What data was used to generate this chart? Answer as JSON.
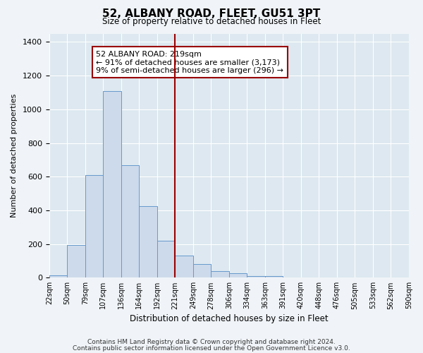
{
  "title": "52, ALBANY ROAD, FLEET, GU51 3PT",
  "subtitle": "Size of property relative to detached houses in Fleet",
  "xlabel": "Distribution of detached houses by size in Fleet",
  "ylabel": "Number of detached properties",
  "bar_color": "#cddaeb",
  "bar_edge_color": "#6699cc",
  "background_color": "#dde8f0",
  "grid_color": "#ffffff",
  "bin_labels": [
    "22sqm",
    "50sqm",
    "79sqm",
    "107sqm",
    "136sqm",
    "164sqm",
    "192sqm",
    "221sqm",
    "249sqm",
    "278sqm",
    "306sqm",
    "334sqm",
    "363sqm",
    "391sqm",
    "420sqm",
    "448sqm",
    "476sqm",
    "505sqm",
    "533sqm",
    "562sqm",
    "590sqm"
  ],
  "counts": [
    15,
    195,
    610,
    1110,
    670,
    425,
    220,
    130,
    80,
    40,
    28,
    10,
    8,
    0,
    0,
    0,
    0,
    0,
    0,
    0
  ],
  "vline_bin": 7,
  "vline_color": "#990000",
  "annotation_text": "52 ALBANY ROAD: 219sqm\n← 91% of detached houses are smaller (3,173)\n9% of semi-detached houses are larger (296) →",
  "annotation_box_color": "#ffffff",
  "annotation_box_edge_color": "#990000",
  "ylim": [
    0,
    1450
  ],
  "yticks": [
    0,
    200,
    400,
    600,
    800,
    1000,
    1200,
    1400
  ],
  "fig_bg_color": "#f0f4f8",
  "footer1": "Contains HM Land Registry data © Crown copyright and database right 2024.",
  "footer2": "Contains public sector information licensed under the Open Government Licence v3.0."
}
